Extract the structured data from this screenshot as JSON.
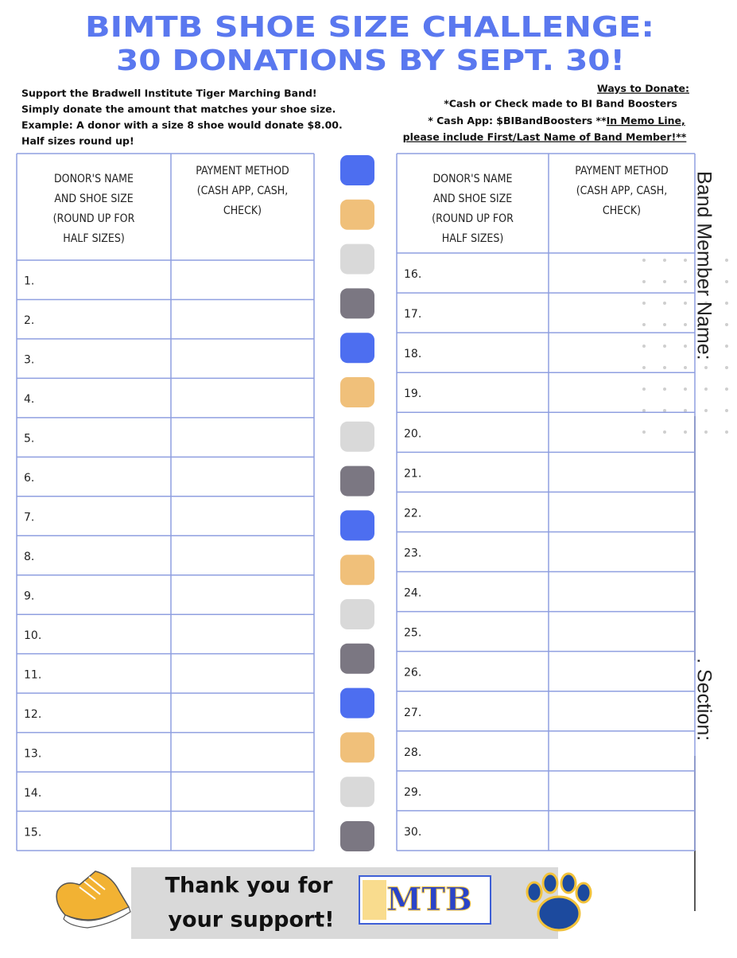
{
  "header": {
    "title": [
      "BIMTB SHOE SIZE CHALLENGE:",
      "30 DONATIONS BY SEPT. 30!"
    ]
  },
  "intro": [
    "Support the Bradwell Institute Tiger Marching Band!",
    "Simply donate the amount that matches your shoe size.",
    "Example: A donor with a size 8 shoe would donate $8.00.",
    "Half sizes round up!"
  ],
  "ways": {
    "heading": "Ways to Donate:",
    "lines": [
      "*Cash or Check made to BI Band Boosters",
      "* Cash App: $BIBandBoosters  **"
    ],
    "memo": [
      "In Memo Line,",
      "please include First/Last Name of Band Member!**"
    ]
  },
  "tables": [
    {
      "headers": [
        [
          "DONOR'S NAME",
          "AND SHOE SIZE",
          "(ROUND UP FOR",
          "HALF SIZES)"
        ],
        [
          "PAYMENT METHOD",
          "(CASH APP, CASH,",
          "CHECK)"
        ]
      ],
      "rows": [
        "1.",
        "2.",
        "3.",
        "4.",
        "5.",
        "6.",
        "7.",
        "8.",
        "9.",
        "10.",
        "11.",
        "12.",
        "13.",
        "14.",
        "15."
      ]
    },
    {
      "headers": [
        [
          "DONOR'S NAME",
          "AND SHOE SIZE",
          "(ROUND UP FOR",
          "HALF SIZES)"
        ],
        [
          "PAYMENT METHOD",
          "(CASH APP, CASH,",
          "CHECK)"
        ]
      ],
      "rows": [
        "16.",
        "17.",
        "18.",
        "19.",
        "20.",
        "21.",
        "22.",
        "23.",
        "24.",
        "25.",
        "26.",
        "27.",
        "28.",
        "29.",
        "30."
      ]
    }
  ],
  "side": {
    "name": "Band Member Name:",
    "section": ". Section:"
  },
  "footer": {
    "thanks": [
      "Thank you for",
      "your support!"
    ],
    "logo": "MTB"
  }
}
